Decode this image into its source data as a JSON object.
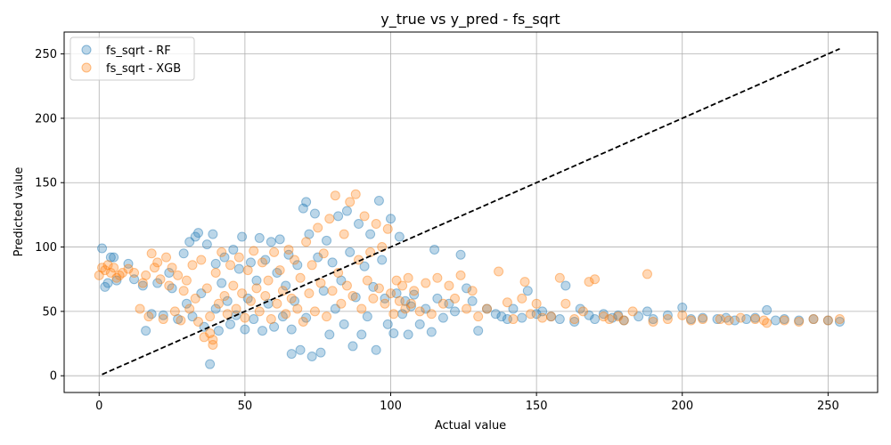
{
  "chart_data": {
    "type": "scatter",
    "title": "y_true vs y_pred - fs_sqrt",
    "xlabel": "Actual value",
    "ylabel": "Predicted value",
    "xlim": [
      -12,
      267
    ],
    "ylim": [
      -13,
      267
    ],
    "xticks": [
      0,
      50,
      100,
      150,
      200,
      250
    ],
    "yticks": [
      0,
      50,
      100,
      150,
      200,
      250
    ],
    "grid": true,
    "legend_position": "top-left",
    "reference_line": {
      "style": "dashed",
      "color": "#000000",
      "x": [
        1,
        254
      ],
      "y": [
        1,
        254
      ]
    },
    "series": [
      {
        "name": "fs_sqrt - RF",
        "color": "#1f77b4",
        "points": [
          [
            1,
            99
          ],
          [
            2,
            69
          ],
          [
            3,
            72
          ],
          [
            4,
            92
          ],
          [
            5,
            92
          ],
          [
            6,
            74
          ],
          [
            10,
            87
          ],
          [
            12,
            75
          ],
          [
            15,
            70
          ],
          [
            16,
            35
          ],
          [
            18,
            48
          ],
          [
            20,
            72
          ],
          [
            22,
            47
          ],
          [
            24,
            80
          ],
          [
            25,
            68
          ],
          [
            27,
            44
          ],
          [
            29,
            95
          ],
          [
            30,
            56
          ],
          [
            31,
            104
          ],
          [
            32,
            46
          ],
          [
            33,
            108
          ],
          [
            34,
            111
          ],
          [
            35,
            64
          ],
          [
            36,
            38
          ],
          [
            37,
            102
          ],
          [
            38,
            9
          ],
          [
            39,
            110
          ],
          [
            40,
            52
          ],
          [
            40,
            87
          ],
          [
            41,
            35
          ],
          [
            42,
            72
          ],
          [
            43,
            92
          ],
          [
            44,
            58
          ],
          [
            45,
            40
          ],
          [
            46,
            98
          ],
          [
            47,
            47
          ],
          [
            48,
            83
          ],
          [
            49,
            108
          ],
          [
            50,
            36
          ],
          [
            51,
            60
          ],
          [
            52,
            88
          ],
          [
            53,
            44
          ],
          [
            54,
            74
          ],
          [
            55,
            107
          ],
          [
            56,
            35
          ],
          [
            57,
            90
          ],
          [
            58,
            56
          ],
          [
            59,
            104
          ],
          [
            60,
            38
          ],
          [
            61,
            80
          ],
          [
            62,
            106
          ],
          [
            63,
            46
          ],
          [
            64,
            70
          ],
          [
            65,
            94
          ],
          [
            66,
            17
          ],
          [
            66,
            36
          ],
          [
            67,
            58
          ],
          [
            68,
            86
          ],
          [
            69,
            20
          ],
          [
            70,
            130
          ],
          [
            71,
            135
          ],
          [
            71,
            45
          ],
          [
            72,
            110
          ],
          [
            73,
            15
          ],
          [
            74,
            126
          ],
          [
            75,
            92
          ],
          [
            76,
            18
          ],
          [
            77,
            66
          ],
          [
            78,
            105
          ],
          [
            79,
            32
          ],
          [
            80,
            88
          ],
          [
            81,
            52
          ],
          [
            82,
            124
          ],
          [
            83,
            74
          ],
          [
            84,
            40
          ],
          [
            85,
            128
          ],
          [
            86,
            96
          ],
          [
            87,
            23
          ],
          [
            88,
            61
          ],
          [
            89,
            118
          ],
          [
            90,
            32
          ],
          [
            91,
            85
          ],
          [
            92,
            46
          ],
          [
            93,
            110
          ],
          [
            94,
            69
          ],
          [
            95,
            20
          ],
          [
            96,
            136
          ],
          [
            97,
            90
          ],
          [
            98,
            60
          ],
          [
            99,
            40
          ],
          [
            100,
            122
          ],
          [
            101,
            33
          ],
          [
            102,
            64
          ],
          [
            103,
            108
          ],
          [
            104,
            48
          ],
          [
            105,
            58
          ],
          [
            106,
            32
          ],
          [
            107,
            54
          ],
          [
            108,
            63
          ],
          [
            110,
            40
          ],
          [
            112,
            52
          ],
          [
            114,
            34
          ],
          [
            115,
            98
          ],
          [
            116,
            60
          ],
          [
            118,
            45
          ],
          [
            120,
            56
          ],
          [
            122,
            50
          ],
          [
            124,
            94
          ],
          [
            126,
            68
          ],
          [
            128,
            58
          ],
          [
            130,
            35
          ],
          [
            133,
            52
          ],
          [
            136,
            48
          ],
          [
            138,
            46
          ],
          [
            140,
            44
          ],
          [
            142,
            52
          ],
          [
            145,
            45
          ],
          [
            147,
            66
          ],
          [
            150,
            48
          ],
          [
            152,
            50
          ],
          [
            155,
            46
          ],
          [
            158,
            44
          ],
          [
            160,
            70
          ],
          [
            163,
            42
          ],
          [
            165,
            52
          ],
          [
            168,
            47
          ],
          [
            170,
            44
          ],
          [
            173,
            48
          ],
          [
            176,
            45
          ],
          [
            178,
            47
          ],
          [
            180,
            43
          ],
          [
            185,
            46
          ],
          [
            188,
            50
          ],
          [
            190,
            44
          ],
          [
            195,
            47
          ],
          [
            200,
            53
          ],
          [
            203,
            44
          ],
          [
            207,
            45
          ],
          [
            212,
            44
          ],
          [
            215,
            45
          ],
          [
            218,
            43
          ],
          [
            222,
            44
          ],
          [
            225,
            45
          ],
          [
            229,
            51
          ],
          [
            232,
            43
          ],
          [
            235,
            44
          ],
          [
            240,
            43
          ],
          [
            245,
            44
          ],
          [
            250,
            43
          ],
          [
            254,
            42
          ]
        ]
      },
      {
        "name": "fs_sqrt - XGB",
        "color": "#ff7f0e",
        "points": [
          [
            0,
            78
          ],
          [
            1,
            84
          ],
          [
            2,
            82
          ],
          [
            3,
            86
          ],
          [
            4,
            80
          ],
          [
            5,
            84
          ],
          [
            6,
            76
          ],
          [
            7,
            78
          ],
          [
            8,
            80
          ],
          [
            10,
            83
          ],
          [
            12,
            80
          ],
          [
            14,
            52
          ],
          [
            15,
            72
          ],
          [
            16,
            78
          ],
          [
            17,
            46
          ],
          [
            18,
            95
          ],
          [
            19,
            84
          ],
          [
            20,
            88
          ],
          [
            21,
            75
          ],
          [
            22,
            44
          ],
          [
            23,
            92
          ],
          [
            24,
            70
          ],
          [
            25,
            84
          ],
          [
            26,
            50
          ],
          [
            27,
            78
          ],
          [
            28,
            43
          ],
          [
            29,
            66
          ],
          [
            30,
            74
          ],
          [
            31,
            52
          ],
          [
            32,
            86
          ],
          [
            33,
            60
          ],
          [
            34,
            42
          ],
          [
            35,
            90
          ],
          [
            36,
            30
          ],
          [
            37,
            68
          ],
          [
            38,
            33
          ],
          [
            38,
            46
          ],
          [
            39,
            28
          ],
          [
            39,
            24
          ],
          [
            40,
            80
          ],
          [
            41,
            56
          ],
          [
            42,
            96
          ],
          [
            43,
            62
          ],
          [
            44,
            48
          ],
          [
            45,
            86
          ],
          [
            46,
            70
          ],
          [
            47,
            52
          ],
          [
            48,
            92
          ],
          [
            49,
            64
          ],
          [
            50,
            45
          ],
          [
            51,
            82
          ],
          [
            52,
            58
          ],
          [
            53,
            97
          ],
          [
            54,
            68
          ],
          [
            55,
            50
          ],
          [
            56,
            88
          ],
          [
            57,
            62
          ],
          [
            58,
            74
          ],
          [
            59,
            44
          ],
          [
            60,
            96
          ],
          [
            61,
            56
          ],
          [
            62,
            82
          ],
          [
            63,
            66
          ],
          [
            64,
            48
          ],
          [
            65,
            98
          ],
          [
            66,
            60
          ],
          [
            67,
            90
          ],
          [
            68,
            52
          ],
          [
            69,
            76
          ],
          [
            70,
            42
          ],
          [
            71,
            104
          ],
          [
            72,
            64
          ],
          [
            73,
            86
          ],
          [
            74,
            50
          ],
          [
            75,
            115
          ],
          [
            76,
            72
          ],
          [
            77,
            95
          ],
          [
            78,
            46
          ],
          [
            79,
            122
          ],
          [
            80,
            66
          ],
          [
            81,
            140
          ],
          [
            82,
            80
          ],
          [
            83,
            56
          ],
          [
            84,
            110
          ],
          [
            85,
            70
          ],
          [
            86,
            135
          ],
          [
            87,
            62
          ],
          [
            88,
            141
          ],
          [
            89,
            90
          ],
          [
            90,
            52
          ],
          [
            91,
            124
          ],
          [
            92,
            74
          ],
          [
            93,
            96
          ],
          [
            94,
            60
          ],
          [
            95,
            118
          ],
          [
            96,
            68
          ],
          [
            97,
            100
          ],
          [
            98,
            56
          ],
          [
            99,
            114
          ],
          [
            100,
            64
          ],
          [
            101,
            48
          ],
          [
            102,
            74
          ],
          [
            103,
            58
          ],
          [
            104,
            70
          ],
          [
            105,
            52
          ],
          [
            106,
            76
          ],
          [
            107,
            56
          ],
          [
            108,
            66
          ],
          [
            110,
            50
          ],
          [
            112,
            72
          ],
          [
            114,
            48
          ],
          [
            116,
            76
          ],
          [
            118,
            56
          ],
          [
            120,
            70
          ],
          [
            122,
            60
          ],
          [
            124,
            78
          ],
          [
            126,
            52
          ],
          [
            128,
            66
          ],
          [
            130,
            46
          ],
          [
            133,
            52
          ],
          [
            137,
            81
          ],
          [
            140,
            57
          ],
          [
            142,
            44
          ],
          [
            145,
            60
          ],
          [
            146,
            73
          ],
          [
            148,
            48
          ],
          [
            150,
            56
          ],
          [
            152,
            45
          ],
          [
            155,
            46
          ],
          [
            158,
            76
          ],
          [
            160,
            56
          ],
          [
            163,
            44
          ],
          [
            166,
            50
          ],
          [
            168,
            73
          ],
          [
            170,
            75
          ],
          [
            173,
            46
          ],
          [
            175,
            44
          ],
          [
            178,
            46
          ],
          [
            180,
            43
          ],
          [
            183,
            50
          ],
          [
            188,
            79
          ],
          [
            190,
            42
          ],
          [
            195,
            44
          ],
          [
            200,
            47
          ],
          [
            203,
            43
          ],
          [
            207,
            44
          ],
          [
            213,
            44
          ],
          [
            216,
            43
          ],
          [
            220,
            45
          ],
          [
            225,
            44
          ],
          [
            228,
            43
          ],
          [
            229,
            41
          ],
          [
            235,
            43
          ],
          [
            240,
            42
          ],
          [
            245,
            44
          ],
          [
            250,
            43
          ],
          [
            254,
            44
          ]
        ]
      }
    ]
  }
}
